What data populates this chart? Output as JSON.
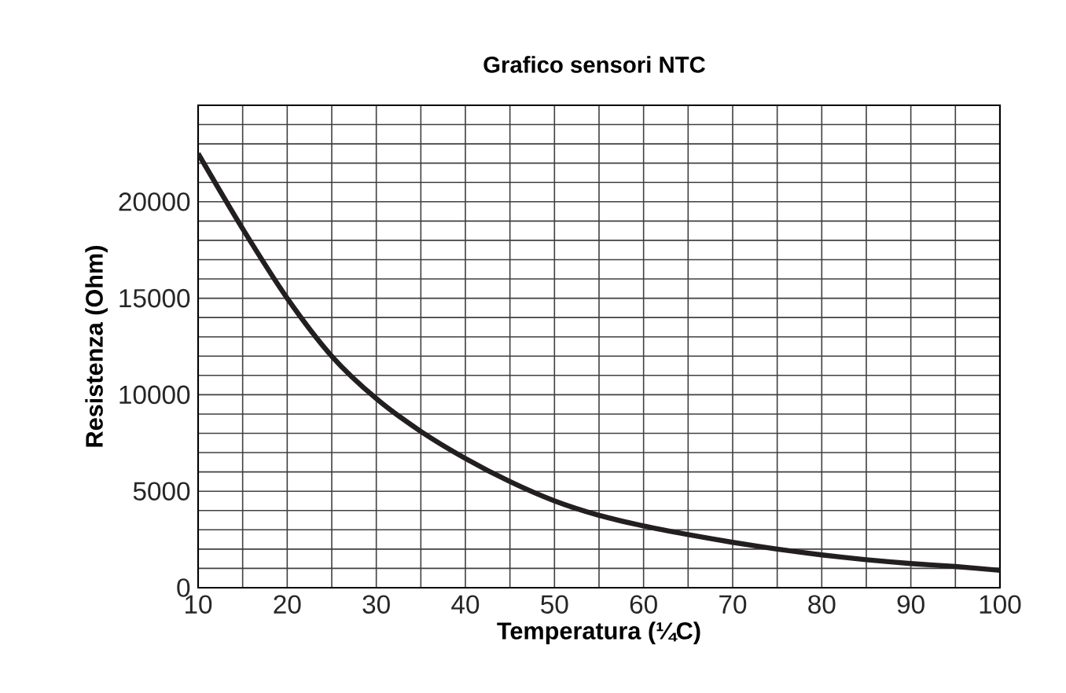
{
  "chart_data": {
    "type": "line",
    "title": "Grafico sensori NTC",
    "xlabel": "Temperatura (¼C)",
    "ylabel": "Resistenza (Ohm)",
    "xlim": [
      10,
      100
    ],
    "ylim": [
      0,
      25000
    ],
    "xticks": [
      10,
      {
        "value": 15,
        "label": null
      },
      20,
      {
        "value": 25,
        "label": null
      },
      30,
      {
        "value": 35,
        "label": null
      },
      40,
      {
        "value": 45,
        "label": null
      },
      50,
      {
        "value": 55,
        "label": null
      },
      60,
      {
        "value": 65,
        "label": null
      },
      70,
      {
        "value": 75,
        "label": null
      },
      80,
      {
        "value": 85,
        "label": null
      },
      90,
      {
        "value": 95,
        "label": null
      },
      100
    ],
    "yticks": [
      0,
      {
        "value": 1000,
        "label": null
      },
      {
        "value": 2000,
        "label": null
      },
      {
        "value": 3000,
        "label": null
      },
      {
        "value": 4000,
        "label": null
      },
      5000,
      {
        "value": 6000,
        "label": null
      },
      {
        "value": 7000,
        "label": null
      },
      {
        "value": 8000,
        "label": null
      },
      {
        "value": 9000,
        "label": null
      },
      10000,
      {
        "value": 11000,
        "label": null
      },
      {
        "value": 12000,
        "label": null
      },
      {
        "value": 13000,
        "label": null
      },
      {
        "value": 14000,
        "label": null
      },
      15000,
      {
        "value": 16000,
        "label": null
      },
      {
        "value": 17000,
        "label": null
      },
      {
        "value": 18000,
        "label": null
      },
      {
        "value": 19000,
        "label": null
      },
      20000,
      {
        "value": 21000,
        "label": null
      },
      {
        "value": 22000,
        "label": null
      },
      {
        "value": 23000,
        "label": null
      },
      {
        "value": 24000,
        "label": null
      },
      {
        "value": 25000,
        "label": null
      }
    ],
    "grid": true,
    "marker": "none",
    "line_style": "solid",
    "x": [
      10,
      15,
      20,
      25,
      30,
      35,
      40,
      45,
      50,
      55,
      60,
      65,
      70,
      75,
      80,
      85,
      90,
      95,
      100
    ],
    "series": [
      {
        "color": "#231f20",
        "values": [
          22500,
          18600,
          15000,
          12000,
          9800,
          8100,
          6700,
          5500,
          4500,
          3750,
          3200,
          2750,
          2350,
          2000,
          1700,
          1450,
          1250,
          1100,
          900
        ]
      }
    ]
  }
}
